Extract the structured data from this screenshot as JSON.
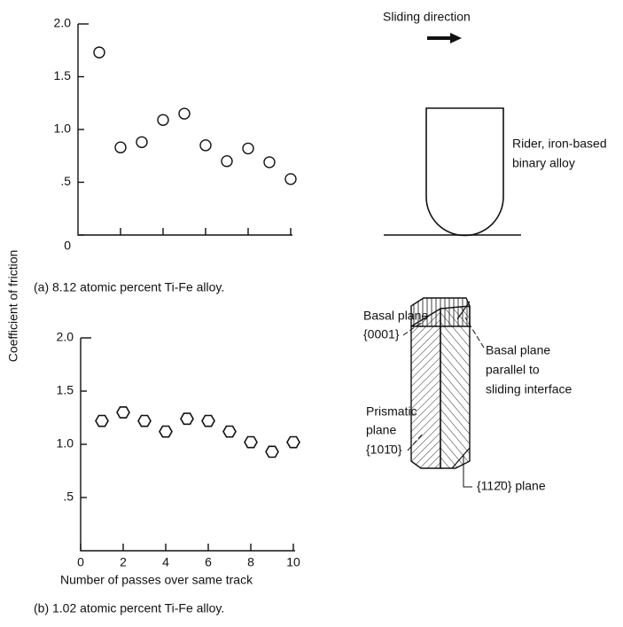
{
  "figure": {
    "ylabel": "Coefficient of friction"
  },
  "chart_data": [
    {
      "type": "scatter",
      "caption": "(a) 8.12 atomic percent Ti-Fe alloy.",
      "marker": "circle",
      "color": "#111111",
      "x": [
        1,
        2,
        3,
        4,
        5,
        6,
        7,
        8,
        9,
        10
      ],
      "values": [
        1.73,
        0.83,
        0.88,
        1.09,
        1.15,
        0.85,
        0.7,
        0.82,
        0.69,
        0.53
      ],
      "xlim": [
        0,
        10
      ],
      "ylim": [
        0,
        2
      ],
      "xticks": [
        2,
        4,
        6,
        8,
        10
      ],
      "xtick_labels": false,
      "yticks": [
        0,
        {
          "value": 0.5,
          "label": ".5"
        },
        {
          "value": 1,
          "label": "1.0"
        },
        1.5,
        {
          "value": 2,
          "label": "2.0"
        }
      ]
    },
    {
      "type": "scatter",
      "caption": "(b) 1.02 atomic percent Ti-Fe alloy.",
      "marker": "hexagon",
      "color": "#111111",
      "xlabel": "Number of passes over same track",
      "x": [
        1,
        2,
        3,
        4,
        5,
        6,
        7,
        8,
        9,
        10
      ],
      "values": [
        1.22,
        1.3,
        1.22,
        1.12,
        1.24,
        1.22,
        1.12,
        1.02,
        0.93,
        1.02
      ],
      "xlim": [
        0,
        10
      ],
      "ylim": [
        0,
        2
      ],
      "xticks": [
        0,
        2,
        4,
        6,
        8,
        10
      ],
      "xtick_labels": true,
      "yticks": [
        {
          "value": 0.5,
          "label": ".5"
        },
        {
          "value": 1,
          "label": "1.0"
        },
        1.5,
        {
          "value": 2,
          "label": "2.0"
        }
      ]
    }
  ],
  "diagram": {
    "rider": {
      "direction": "Sliding direction",
      "label": [
        "Rider, iron-based",
        "binary alloy"
      ]
    },
    "crystal": {
      "basal": [
        "Basal plane",
        "{0001}"
      ],
      "prismatic": [
        "Prismatic",
        "plane",
        "{101̄0}"
      ],
      "parallel": [
        "Basal plane",
        "parallel to",
        "sliding interface"
      ],
      "other": "{112̄0} plane"
    }
  }
}
